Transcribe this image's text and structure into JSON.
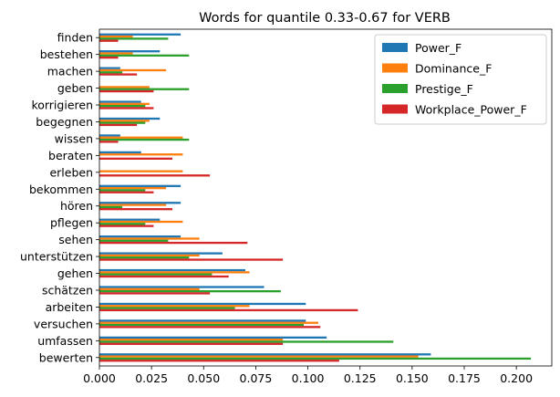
{
  "chart_data": {
    "type": "bar",
    "orientation": "horizontal",
    "title": "Words for quantile 0.33-0.67 for VERB",
    "xlabel": "",
    "ylabel": "",
    "xlim": [
      0,
      0.217
    ],
    "xticks": [
      "0.000",
      "0.025",
      "0.050",
      "0.075",
      "0.100",
      "0.125",
      "0.150",
      "0.175",
      "0.200"
    ],
    "grid": false,
    "legend_position": "top-right",
    "categories": [
      "bewerten",
      "umfassen",
      "versuchen",
      "arbeiten",
      "schätzen",
      "gehen",
      "unterstützen",
      "sehen",
      "pflegen",
      "hören",
      "bekommen",
      "erleben",
      "beraten",
      "wissen",
      "begegnen",
      "korrigieren",
      "geben",
      "machen",
      "bestehen",
      "finden"
    ],
    "series": [
      {
        "name": "Power_F",
        "color": "#1f77b4",
        "values": [
          0.159,
          0.109,
          0.099,
          0.099,
          0.079,
          0.07,
          0.059,
          0.039,
          0.029,
          0.039,
          0.039,
          0.0,
          0.02,
          0.01,
          0.029,
          0.02,
          0.0,
          0.01,
          0.029,
          0.039
        ]
      },
      {
        "name": "Dominance_F",
        "color": "#ff7f0e",
        "values": [
          0.153,
          0.088,
          0.105,
          0.072,
          0.048,
          0.072,
          0.048,
          0.048,
          0.04,
          0.032,
          0.032,
          0.04,
          0.04,
          0.04,
          0.024,
          0.024,
          0.024,
          0.032,
          0.016,
          0.016
        ]
      },
      {
        "name": "Prestige_F",
        "color": "#2ca02c",
        "values": [
          0.207,
          0.141,
          0.098,
          0.065,
          0.087,
          0.054,
          0.043,
          0.033,
          0.022,
          0.011,
          0.022,
          0.0,
          0.0,
          0.043,
          0.022,
          0.022,
          0.043,
          0.011,
          0.043,
          0.033
        ]
      },
      {
        "name": "Workplace_Power_F",
        "color": "#d62728",
        "values": [
          0.115,
          0.088,
          0.106,
          0.124,
          0.053,
          0.062,
          0.088,
          0.071,
          0.026,
          0.035,
          0.026,
          0.053,
          0.035,
          0.009,
          0.018,
          0.026,
          0.026,
          0.018,
          0.009,
          0.009
        ]
      }
    ]
  }
}
